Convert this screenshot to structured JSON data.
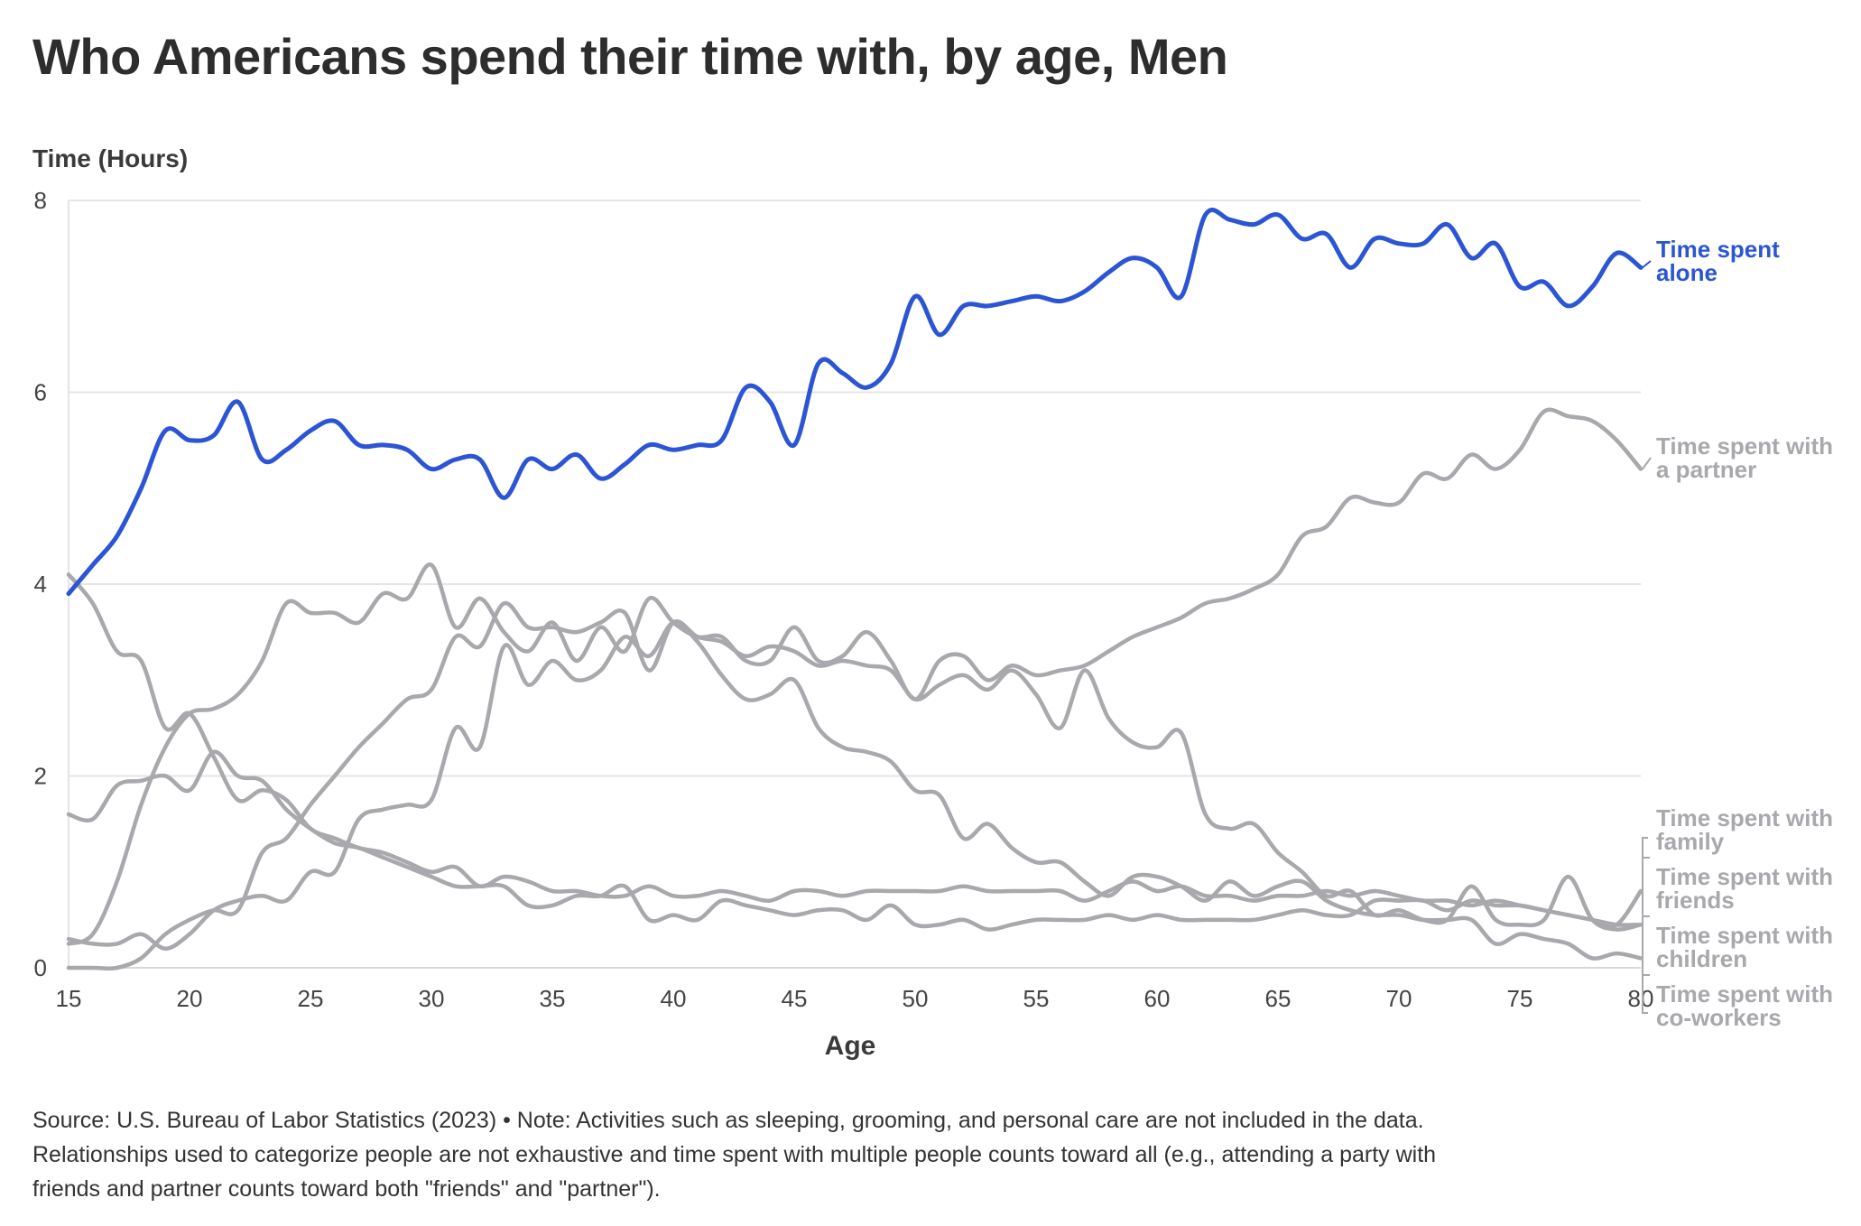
{
  "title": "Who Americans spend their time with, by age, Men",
  "footer": {
    "lines": [
      "Source: U.S. Bureau of Labor Statistics (2023) • Note: Activities such as sleeping, grooming, and personal care are not included in the data.",
      "Relationships used to categorize people are not exhaustive and time spent with multiple people counts toward all (e.g., attending a party with",
      "friends and partner counts toward both \"friends\" and \"partner\")."
    ]
  },
  "chart_data": {
    "type": "line",
    "ylabel": "Time (Hours)",
    "xlabel": "Age",
    "xlim": [
      15,
      80
    ],
    "ylim": [
      0,
      8
    ],
    "xticks": [
      "15",
      "20",
      "25",
      "30",
      "35",
      "40",
      "45",
      "50",
      "55",
      "60",
      "65",
      "70",
      "75",
      "80"
    ],
    "yticks": [
      "0",
      "2",
      "4",
      "6",
      "8"
    ],
    "grid": true,
    "colors": {
      "highlight": "#2b55d4",
      "muted": "#a8a8ad",
      "grid": "#e5e5e5"
    },
    "x": [
      15,
      16,
      17,
      18,
      19,
      20,
      21,
      22,
      23,
      24,
      25,
      26,
      27,
      28,
      29,
      30,
      31,
      32,
      33,
      34,
      35,
      36,
      37,
      38,
      39,
      40,
      41,
      42,
      43,
      44,
      45,
      46,
      47,
      48,
      49,
      50,
      51,
      52,
      53,
      54,
      55,
      56,
      57,
      58,
      59,
      60,
      61,
      62,
      63,
      64,
      65,
      66,
      67,
      68,
      69,
      70,
      71,
      72,
      73,
      74,
      75,
      76,
      77,
      78,
      79,
      80
    ],
    "series": [
      {
        "name": "Time spent alone",
        "label_lines": [
          "Time spent",
          "alone"
        ],
        "highlight": true,
        "values": [
          3.9,
          4.2,
          4.5,
          5.0,
          5.6,
          5.5,
          5.55,
          5.9,
          5.3,
          5.4,
          5.6,
          5.7,
          5.45,
          5.45,
          5.4,
          5.2,
          5.3,
          5.3,
          4.9,
          5.3,
          5.2,
          5.35,
          5.1,
          5.25,
          5.45,
          5.4,
          5.45,
          5.5,
          6.05,
          5.9,
          5.45,
          6.3,
          6.2,
          6.05,
          6.3,
          7.0,
          6.6,
          6.9,
          6.9,
          6.95,
          7.0,
          6.95,
          7.05,
          7.25,
          7.4,
          7.3,
          7.0,
          7.85,
          7.8,
          7.75,
          7.85,
          7.6,
          7.65,
          7.3,
          7.6,
          7.55,
          7.55,
          7.75,
          7.4,
          7.55,
          7.1,
          7.15,
          6.9,
          7.1,
          7.45,
          7.3
        ]
      },
      {
        "name": "Time spent with a partner",
        "label_lines": [
          "Time spent with",
          "a partner"
        ],
        "values": [
          0.25,
          0.35,
          0.9,
          1.7,
          2.3,
          2.65,
          2.7,
          2.85,
          3.2,
          3.8,
          3.7,
          3.7,
          3.6,
          3.9,
          3.85,
          4.2,
          3.55,
          3.85,
          3.5,
          3.3,
          3.6,
          3.2,
          3.55,
          3.3,
          3.85,
          3.6,
          3.45,
          3.45,
          3.2,
          3.2,
          3.55,
          3.2,
          3.25,
          3.5,
          3.2,
          2.8,
          3.2,
          3.25,
          3.0,
          3.15,
          3.05,
          3.1,
          3.15,
          3.3,
          3.45,
          3.55,
          3.65,
          3.8,
          3.85,
          3.95,
          4.1,
          4.5,
          4.6,
          4.9,
          4.85,
          4.85,
          5.15,
          5.1,
          5.35,
          5.2,
          5.4,
          5.8,
          5.75,
          5.7,
          5.5,
          5.2
        ]
      },
      {
        "name": "Time spent with family",
        "label_lines": [
          "Time spent with",
          "family"
        ],
        "values": [
          4.1,
          3.8,
          3.3,
          3.2,
          2.5,
          2.65,
          2.2,
          1.75,
          1.85,
          1.75,
          1.45,
          1.35,
          1.25,
          1.2,
          1.1,
          1.0,
          1.05,
          0.85,
          0.95,
          0.9,
          0.8,
          0.8,
          0.75,
          0.75,
          0.85,
          0.75,
          0.75,
          0.8,
          0.75,
          0.7,
          0.8,
          0.8,
          0.75,
          0.8,
          0.8,
          0.8,
          0.8,
          0.85,
          0.8,
          0.8,
          0.8,
          0.8,
          0.7,
          0.8,
          0.9,
          0.8,
          0.85,
          0.75,
          0.75,
          0.7,
          0.75,
          0.75,
          0.8,
          0.75,
          0.8,
          0.75,
          0.7,
          0.7,
          0.65,
          0.7,
          0.65,
          0.6,
          0.55,
          0.5,
          0.45,
          0.8
        ]
      },
      {
        "name": "Time spent with friends",
        "label_lines": [
          "Time spent with",
          "friends"
        ],
        "values": [
          1.6,
          1.55,
          1.9,
          1.95,
          2.0,
          1.85,
          2.25,
          2.0,
          1.95,
          1.65,
          1.45,
          1.3,
          1.25,
          1.15,
          1.05,
          0.95,
          0.85,
          0.85,
          0.85,
          0.65,
          0.65,
          0.75,
          0.75,
          0.85,
          0.5,
          0.55,
          0.5,
          0.7,
          0.65,
          0.6,
          0.55,
          0.6,
          0.6,
          0.5,
          0.65,
          0.45,
          0.45,
          0.5,
          0.4,
          0.45,
          0.5,
          0.5,
          0.5,
          0.55,
          0.5,
          0.55,
          0.5,
          0.5,
          0.5,
          0.5,
          0.55,
          0.6,
          0.55,
          0.55,
          0.7,
          0.7,
          0.7,
          0.6,
          0.7,
          0.65,
          0.65,
          0.6,
          0.55,
          0.5,
          0.45,
          0.45
        ]
      },
      {
        "name": "Time spent with children",
        "label_lines": [
          "Time spent with",
          "children"
        ],
        "values": [
          0.3,
          0.25,
          0.25,
          0.35,
          0.2,
          0.35,
          0.6,
          0.7,
          0.75,
          0.7,
          1.0,
          1.0,
          1.55,
          1.65,
          1.7,
          1.75,
          2.5,
          2.3,
          3.35,
          2.95,
          3.2,
          3.0,
          3.1,
          3.45,
          3.25,
          3.6,
          3.4,
          3.05,
          2.8,
          2.85,
          3.0,
          2.5,
          2.3,
          2.25,
          2.15,
          1.85,
          1.8,
          1.35,
          1.5,
          1.25,
          1.1,
          1.1,
          0.9,
          0.75,
          0.95,
          0.95,
          0.85,
          0.7,
          0.9,
          0.75,
          0.85,
          0.9,
          0.7,
          0.6,
          0.55,
          0.55,
          0.5,
          0.5,
          0.5,
          0.25,
          0.35,
          0.3,
          0.25,
          0.1,
          0.15,
          0.1
        ]
      },
      {
        "name": "Time spent with co-workers",
        "label_lines": [
          "Time spent with",
          "co-workers"
        ],
        "values": [
          0.0,
          0.0,
          0.0,
          0.1,
          0.35,
          0.5,
          0.6,
          0.6,
          1.2,
          1.35,
          1.7,
          2.0,
          2.3,
          2.55,
          2.8,
          2.9,
          3.45,
          3.35,
          3.8,
          3.55,
          3.55,
          3.5,
          3.6,
          3.7,
          3.1,
          3.6,
          3.45,
          3.4,
          3.25,
          3.35,
          3.3,
          3.15,
          3.2,
          3.15,
          3.1,
          2.8,
          2.95,
          3.05,
          2.9,
          3.1,
          2.85,
          2.5,
          3.1,
          2.6,
          2.35,
          2.3,
          2.45,
          1.6,
          1.45,
          1.5,
          1.2,
          1.0,
          0.75,
          0.8,
          0.55,
          0.6,
          0.5,
          0.5,
          0.85,
          0.5,
          0.45,
          0.5,
          0.95,
          0.5,
          0.4,
          0.45
        ]
      }
    ]
  }
}
